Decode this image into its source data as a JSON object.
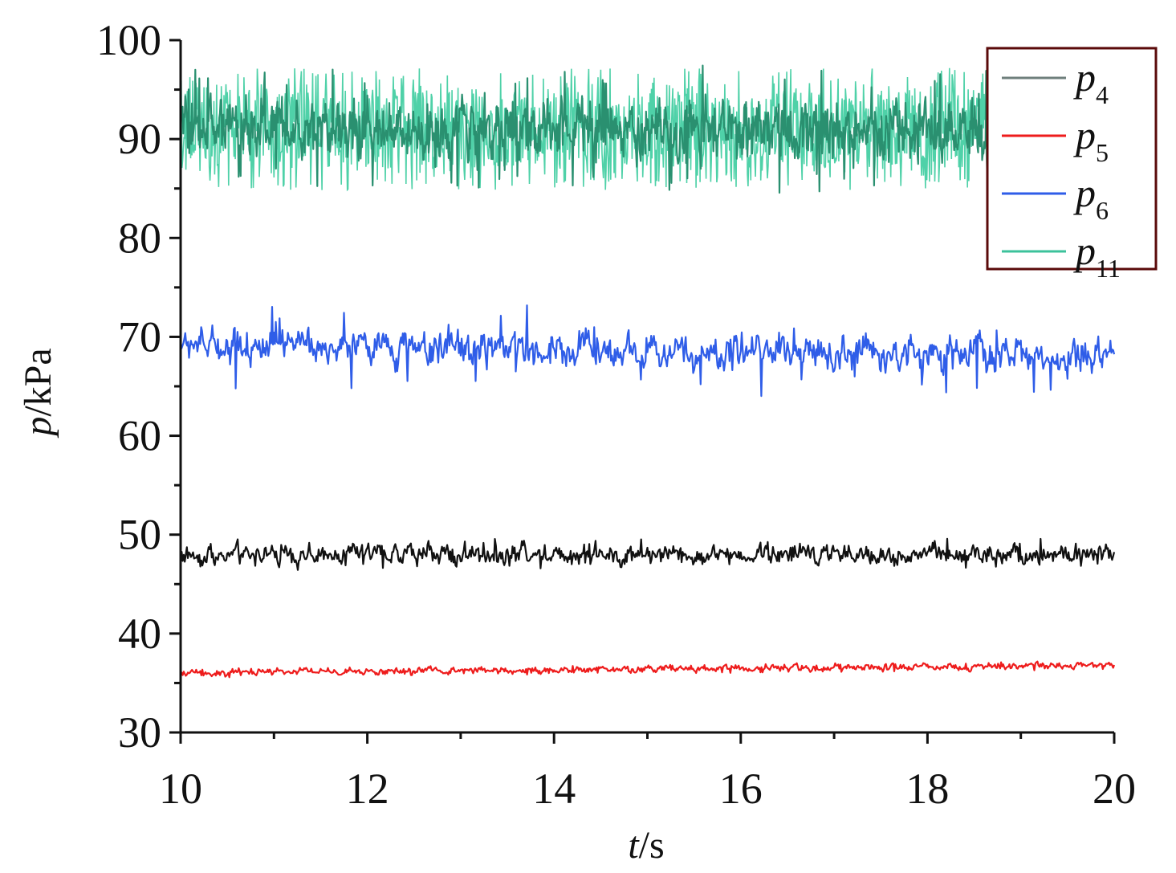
{
  "chart_data": {
    "type": "line",
    "x_axis": {
      "title_italic": "t",
      "title_rest": "/s",
      "range": [
        10,
        20
      ],
      "ticks": [
        "10",
        "12",
        "14",
        "16",
        "18",
        "20"
      ],
      "tick_values": [
        10,
        12,
        14,
        16,
        18,
        20
      ]
    },
    "y_axis": {
      "title_italic": "p",
      "title_rest": "/kPa",
      "range": [
        30,
        100
      ],
      "ticks": [
        "30",
        "40",
        "50",
        "60",
        "70",
        "80",
        "90",
        "100"
      ],
      "tick_values": [
        30,
        40,
        50,
        60,
        70,
        80,
        90,
        100
      ]
    },
    "grid": false,
    "legend_position": "top-right",
    "series": [
      {
        "name": "p4",
        "label_main": "p",
        "label_sub": "4",
        "color": "#111111",
        "legend_color": "#6f7f7c",
        "mean": 48.0,
        "amplitude": 1.0,
        "spike": 1.6,
        "points": 900
      },
      {
        "name": "p5",
        "label_main": "p",
        "label_sub": "5",
        "color": "#ee1c1c",
        "legend_color": "#ee1c1c",
        "mean_start": 36.0,
        "mean_end": 36.8,
        "amplitude": 0.35,
        "spike": 0.5,
        "points": 900
      },
      {
        "name": "p6",
        "label_main": "p",
        "label_sub": "6",
        "color": "#2f5de8",
        "legend_color": "#2f5de8",
        "mean_start": 69.2,
        "mean_end": 68.0,
        "amplitude": 1.6,
        "spike": 4.5,
        "points": 1000
      },
      {
        "name": "p11",
        "label_main": "p",
        "label_sub": "11",
        "color": "#2a9070",
        "legend_color": "#3cc29b",
        "spike_color": "#4fd1a8",
        "mean": 91.0,
        "amplitude": 2.8,
        "spike": 6.5,
        "points": 1400
      }
    ]
  }
}
